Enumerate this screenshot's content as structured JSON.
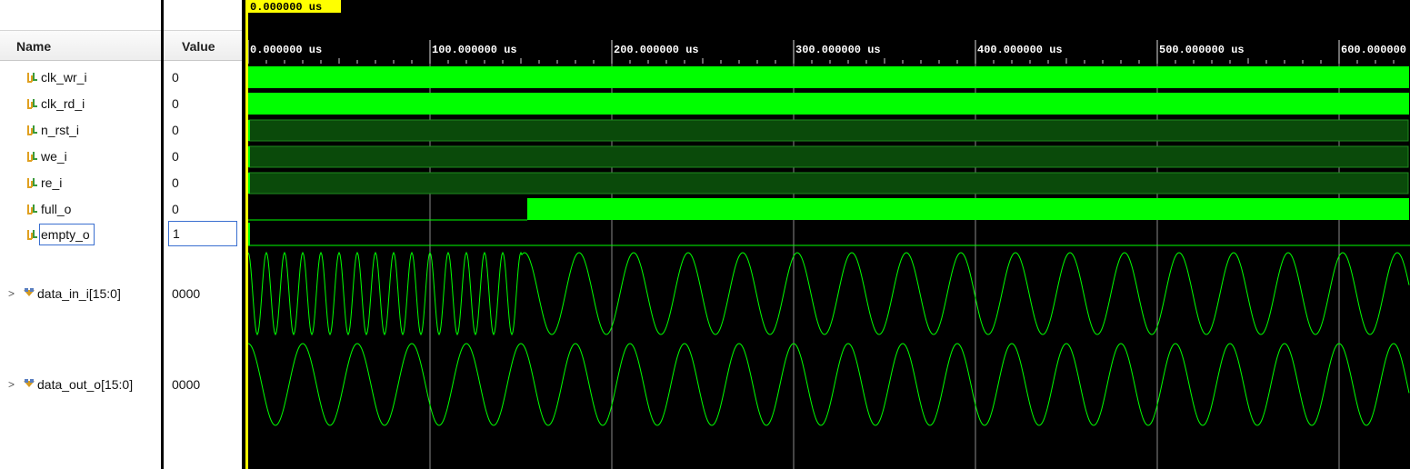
{
  "cursor": {
    "label": "0.000000 us"
  },
  "headers": {
    "name": "Name",
    "value": "Value"
  },
  "signals": [
    {
      "name": "clk_wr_i",
      "value": "0",
      "kind": "bit",
      "icon": "logic-signal-icon"
    },
    {
      "name": "clk_rd_i",
      "value": "0",
      "kind": "bit",
      "icon": "logic-signal-icon"
    },
    {
      "name": "n_rst_i",
      "value": "0",
      "kind": "bit",
      "icon": "logic-signal-icon"
    },
    {
      "name": "we_i",
      "value": "0",
      "kind": "bit",
      "icon": "logic-signal-icon"
    },
    {
      "name": "re_i",
      "value": "0",
      "kind": "bit",
      "icon": "logic-signal-icon"
    },
    {
      "name": "full_o",
      "value": "0",
      "kind": "bit",
      "icon": "logic-signal-icon"
    },
    {
      "name": "empty_o",
      "value": "1",
      "kind": "bit",
      "icon": "logic-signal-icon"
    },
    {
      "name": "data_in_i[15:0]",
      "value": "0000",
      "kind": "bus",
      "icon": "bus-signal-icon",
      "expander": ">"
    },
    {
      "name": "data_out_o[15:0]",
      "value": "0000",
      "kind": "bus",
      "icon": "bus-signal-icon",
      "expander": ">"
    }
  ],
  "timeline": {
    "labels": [
      "0.000000 us",
      "100.000000 us",
      "200.000000 us",
      "300.000000 us",
      "400.000000 us",
      "500.000000 us",
      "600.000000"
    ]
  },
  "colors": {
    "wave_bright": "#00ff00",
    "wave_dark": "#0a4a0a",
    "cursor": "#ffff00",
    "background": "#000000"
  }
}
